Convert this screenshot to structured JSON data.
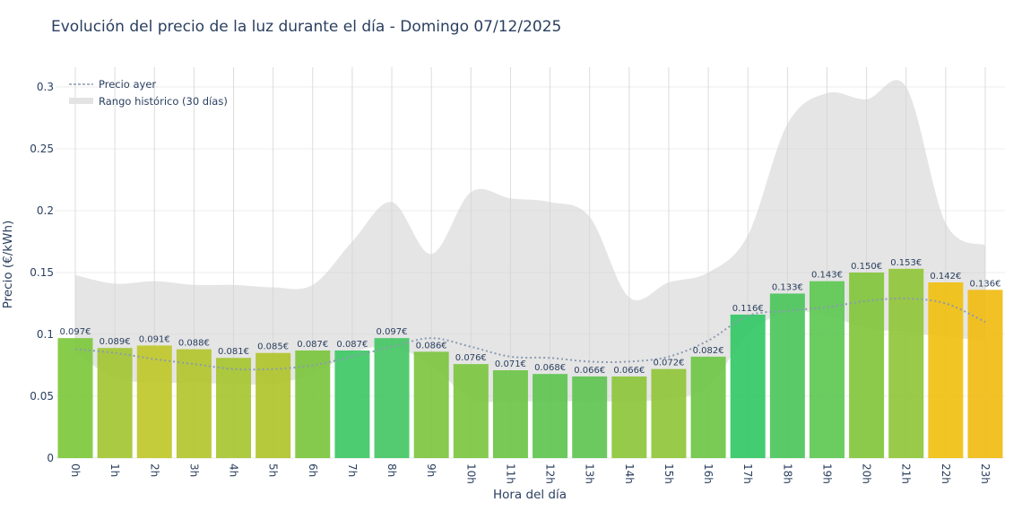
{
  "chart_data": {
    "type": "bar",
    "title": "Evolución del precio de la luz durante el día - Domingo 07/12/2025",
    "xlabel": "Hora del día",
    "ylabel": "Precio (€/kWh)",
    "ylim": [
      0,
      0.31
    ],
    "yticks": [
      0,
      0.05,
      0.1,
      0.15,
      0.2,
      0.25,
      0.3
    ],
    "ytick_labels": [
      "0",
      "0.05",
      "0.1",
      "0.15",
      "0.2",
      "0.25",
      "0.3"
    ],
    "grid": true,
    "legend_position": "top-left",
    "categories": [
      "0h",
      "1h",
      "2h",
      "3h",
      "4h",
      "5h",
      "6h",
      "7h",
      "8h",
      "9h",
      "10h",
      "11h",
      "12h",
      "13h",
      "14h",
      "15h",
      "16h",
      "17h",
      "18h",
      "19h",
      "20h",
      "21h",
      "22h",
      "23h"
    ],
    "values": [
      0.097,
      0.089,
      0.091,
      0.088,
      0.081,
      0.085,
      0.087,
      0.087,
      0.097,
      0.086,
      0.076,
      0.071,
      0.068,
      0.066,
      0.066,
      0.072,
      0.082,
      0.116,
      0.133,
      0.143,
      0.15,
      0.153,
      0.142,
      0.136
    ],
    "data_labels": [
      "0.097€",
      "0.089€",
      "0.091€",
      "0.088€",
      "0.081€",
      "0.085€",
      "0.087€",
      "0.087€",
      "0.097€",
      "0.086€",
      "0.076€",
      "0.071€",
      "0.068€",
      "0.066€",
      "0.066€",
      "0.072€",
      "0.082€",
      "0.116€",
      "0.133€",
      "0.143€",
      "0.150€",
      "0.153€",
      "0.142€",
      "0.136€"
    ],
    "bar_colors": [
      "#7dc83c",
      "#a3c634",
      "#c0c82a",
      "#b3c52e",
      "#a6c631",
      "#b0c42c",
      "#7cc63e",
      "#3ec866",
      "#45c764",
      "#7dc640",
      "#7cc641",
      "#6cc447",
      "#5ec450",
      "#5fc452",
      "#8cc63c",
      "#90c53a",
      "#6fc648",
      "#33c865",
      "#4cc65b",
      "#5ec852",
      "#82c63c",
      "#90c53a",
      "#f0c010",
      "#f0bc14"
    ],
    "series": [
      {
        "name": "Precio ayer",
        "type": "line",
        "style": "dotted",
        "color": "#8a9bb0",
        "values": [
          0.088,
          0.085,
          0.08,
          0.076,
          0.072,
          0.072,
          0.075,
          0.082,
          0.09,
          0.097,
          0.09,
          0.082,
          0.081,
          0.078,
          0.078,
          0.082,
          0.095,
          0.115,
          0.119,
          0.122,
          0.127,
          0.129,
          0.125,
          0.11
        ]
      },
      {
        "name": "Rango histórico (30 días)",
        "type": "band",
        "color": "#d9d9d9",
        "upper": [
          0.148,
          0.141,
          0.143,
          0.14,
          0.14,
          0.138,
          0.14,
          0.175,
          0.207,
          0.165,
          0.215,
          0.21,
          0.207,
          0.195,
          0.13,
          0.142,
          0.15,
          0.18,
          0.27,
          0.295,
          0.29,
          0.3,
          0.19,
          0.172
        ],
        "lower": [
          0.085,
          0.065,
          0.061,
          0.061,
          0.06,
          0.06,
          0.068,
          0.085,
          0.09,
          0.075,
          0.048,
          0.046,
          0.046,
          0.046,
          0.046,
          0.048,
          0.058,
          0.1,
          0.118,
          0.115,
          0.105,
          0.102,
          0.098,
          0.095
        ]
      }
    ]
  }
}
